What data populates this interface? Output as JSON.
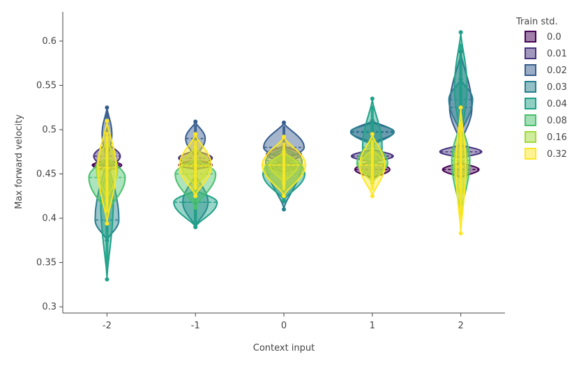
{
  "chart_data": {
    "type": "violin",
    "xlabel": "Context input",
    "ylabel": "Max forward velocity",
    "categories": [
      "-2",
      "-1",
      "0",
      "1",
      "2"
    ],
    "yticks": [
      "0.3",
      "0.35",
      "0.4",
      "0.45",
      "0.5",
      "0.55",
      "0.6"
    ],
    "ylim": [
      0.293,
      0.633
    ],
    "legend": {
      "title": "Train std.",
      "position": "top-right"
    },
    "series": [
      {
        "name": "0.0",
        "color": "#440154",
        "groups": [
          {
            "center": 0.46,
            "min": 0.453,
            "max": 0.466,
            "w": 42,
            "mean": 0.46
          },
          {
            "center": 0.46,
            "min": 0.455,
            "max": 0.466,
            "w": 48,
            "mean": 0.46
          },
          {
            "center": 0.458,
            "min": 0.452,
            "max": 0.465,
            "w": 40,
            "mean": 0.458
          },
          {
            "center": 0.455,
            "min": 0.445,
            "max": 0.465,
            "w": 50,
            "mean": 0.455
          },
          {
            "center": 0.455,
            "min": 0.446,
            "max": 0.463,
            "w": 52,
            "mean": 0.455
          }
        ]
      },
      {
        "name": "0.01",
        "color": "#46327e",
        "groups": [
          {
            "center": 0.47,
            "min": 0.455,
            "max": 0.485,
            "w": 38,
            "mean": 0.47
          },
          {
            "center": 0.468,
            "min": 0.458,
            "max": 0.477,
            "w": 48,
            "mean": 0.468
          },
          {
            "center": 0.472,
            "min": 0.462,
            "max": 0.482,
            "w": 50,
            "mean": 0.472
          },
          {
            "center": 0.47,
            "min": 0.463,
            "max": 0.478,
            "w": 60,
            "mean": 0.47
          },
          {
            "center": 0.475,
            "min": 0.468,
            "max": 0.483,
            "w": 60,
            "mean": 0.475
          }
        ]
      },
      {
        "name": "0.02",
        "color": "#365c8d",
        "groups": [
          {
            "center": 0.495,
            "min": 0.465,
            "max": 0.525,
            "w": 14,
            "mean": 0.494
          },
          {
            "center": 0.49,
            "min": 0.468,
            "max": 0.509,
            "w": 28,
            "mean": 0.49
          },
          {
            "center": 0.48,
            "min": 0.465,
            "max": 0.508,
            "w": 58,
            "mean": 0.48
          },
          {
            "center": 0.497,
            "min": 0.485,
            "max": 0.51,
            "w": 62,
            "mean": 0.497
          },
          {
            "center": 0.525,
            "min": 0.484,
            "max": 0.588,
            "w": 32,
            "mean": 0.525
          }
        ]
      },
      {
        "name": "0.03",
        "color": "#277f8e",
        "groups": [
          {
            "center": 0.398,
            "min": 0.375,
            "max": 0.47,
            "w": 34,
            "mean": 0.398
          },
          {
            "center": 0.418,
            "min": 0.39,
            "max": 0.45,
            "w": 36,
            "mean": 0.418
          },
          {
            "center": 0.465,
            "min": 0.41,
            "max": 0.48,
            "w": 52,
            "mean": 0.465
          },
          {
            "center": 0.498,
            "min": 0.482,
            "max": 0.508,
            "w": 62,
            "mean": 0.498
          },
          {
            "center": 0.534,
            "min": 0.495,
            "max": 0.557,
            "w": 34,
            "mean": 0.534
          }
        ]
      },
      {
        "name": "0.04",
        "color": "#1fa187",
        "groups": [
          {
            "center": 0.42,
            "min": 0.331,
            "max": 0.455,
            "w": 18,
            "mean": 0.42
          },
          {
            "center": 0.418,
            "min": 0.39,
            "max": 0.432,
            "w": 62,
            "mean": 0.418
          },
          {
            "center": 0.45,
            "min": 0.42,
            "max": 0.475,
            "w": 60,
            "mean": 0.45
          },
          {
            "center": 0.48,
            "min": 0.455,
            "max": 0.535,
            "w": 28,
            "mean": 0.48
          },
          {
            "center": 0.548,
            "min": 0.49,
            "max": 0.61,
            "w": 18,
            "mean": 0.548
          }
        ]
      },
      {
        "name": "0.08",
        "color": "#4ac16d",
        "groups": [
          {
            "center": 0.446,
            "min": 0.405,
            "max": 0.47,
            "w": 52,
            "mean": 0.446
          },
          {
            "center": 0.45,
            "min": 0.412,
            "max": 0.468,
            "w": 58,
            "mean": 0.45
          },
          {
            "center": 0.455,
            "min": 0.43,
            "max": 0.475,
            "w": 56,
            "mean": 0.455
          },
          {
            "center": 0.462,
            "min": 0.445,
            "max": 0.49,
            "w": 44,
            "mean": 0.462
          },
          {
            "center": 0.465,
            "min": 0.405,
            "max": 0.51,
            "w": 26,
            "mean": 0.465
          }
        ]
      },
      {
        "name": "0.16",
        "color": "#a0da39",
        "groups": [
          {
            "center": 0.455,
            "min": 0.42,
            "max": 0.49,
            "w": 30,
            "mean": 0.455
          },
          {
            "center": 0.46,
            "min": 0.435,
            "max": 0.48,
            "w": 40,
            "mean": 0.46
          },
          {
            "center": 0.46,
            "min": 0.44,
            "max": 0.475,
            "w": 40,
            "mean": 0.46
          },
          {
            "center": 0.46,
            "min": 0.44,
            "max": 0.478,
            "w": 38,
            "mean": 0.46
          },
          {
            "center": 0.46,
            "min": 0.42,
            "max": 0.5,
            "w": 20,
            "mean": 0.46
          }
        ]
      },
      {
        "name": "0.32",
        "color": "#fde725",
        "groups": [
          {
            "center": 0.457,
            "min": 0.394,
            "max": 0.51,
            "w": 26,
            "mean": 0.457
          },
          {
            "center": 0.459,
            "min": 0.425,
            "max": 0.495,
            "w": 46,
            "mean": 0.459
          },
          {
            "center": 0.46,
            "min": 0.425,
            "max": 0.492,
            "w": 62,
            "mean": 0.46
          },
          {
            "center": 0.46,
            "min": 0.425,
            "max": 0.495,
            "w": 36,
            "mean": 0.46
          },
          {
            "center": 0.458,
            "min": 0.383,
            "max": 0.525,
            "w": 14,
            "mean": 0.458
          }
        ]
      }
    ]
  }
}
